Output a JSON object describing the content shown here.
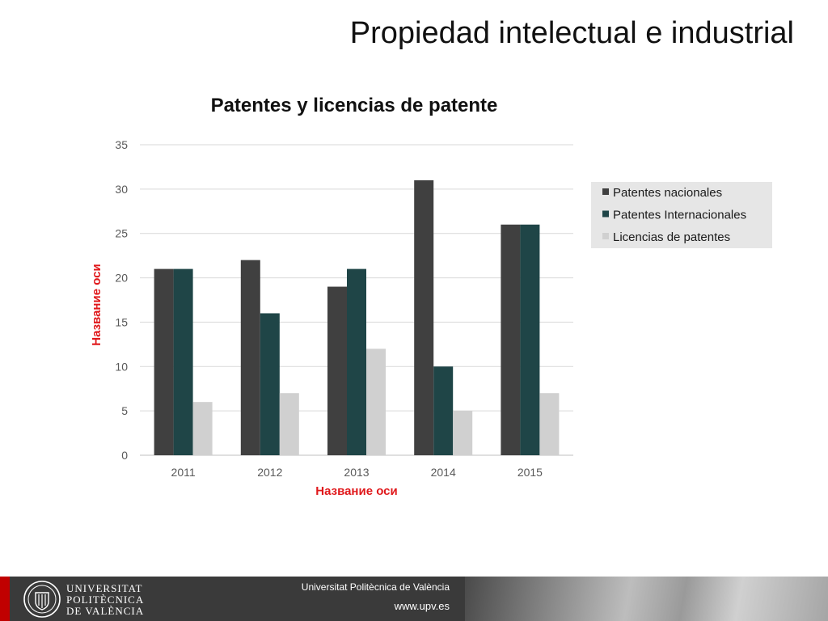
{
  "slide": {
    "title": "Propiedad intelectual e industrial"
  },
  "chart_data": {
    "type": "bar",
    "title": "Patentes y licencias de patente",
    "xlabel": "Название оси",
    "ylabel": "Название оси",
    "categories": [
      "2011",
      "2012",
      "2013",
      "2014",
      "2015"
    ],
    "series": [
      {
        "name": "Patentes nacionales",
        "values": [
          21,
          22,
          19,
          31,
          26
        ],
        "color": "#404040"
      },
      {
        "name": "Patentes Internacionales",
        "values": [
          21,
          16,
          21,
          10,
          26
        ],
        "color": "#1f4547"
      },
      {
        "name": "Licencias de patentes",
        "values": [
          6,
          7,
          12,
          5,
          7
        ],
        "color": "#d0d0d0"
      }
    ],
    "ylim": [
      0,
      35
    ],
    "yticks": [
      0,
      5,
      10,
      15,
      20,
      25,
      30,
      35
    ],
    "grid": true,
    "legend_position": "right",
    "axis_title_color": "#e0181b"
  },
  "footer": {
    "logo_lines": [
      "UNIVERSITAT",
      "POLITÈCNICA",
      "DE VALÈNCIA"
    ],
    "university": "Universitat Politècnica de València",
    "website": "www.upv.es",
    "accent_color": "#c00000"
  }
}
